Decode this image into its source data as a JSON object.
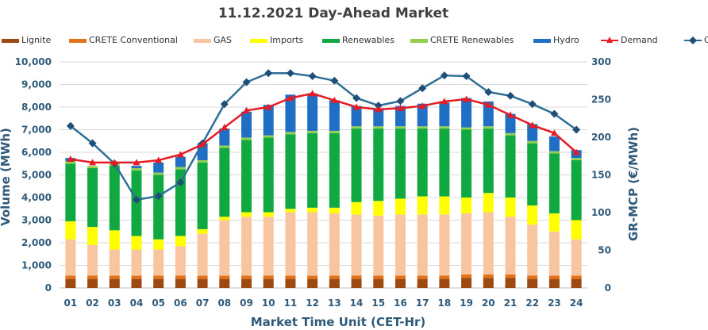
{
  "chart_data": {
    "type": "bar",
    "title": "11.12.2021  Day-Ahead Market",
    "xlabel": "Market Time Unit (CET-Hr)",
    "ylabel": "Volume (MWh)",
    "y2label": "GR-MCP (€/MWh)",
    "ylim": [
      0,
      10000
    ],
    "y2lim": [
      0,
      300
    ],
    "yticks": [
      "0",
      "1,000",
      "2,000",
      "3,000",
      "4,000",
      "5,000",
      "6,000",
      "7,000",
      "8,000",
      "9,000",
      "10,000"
    ],
    "y2ticks": [
      "0",
      "50",
      "100",
      "150",
      "200",
      "250",
      "300"
    ],
    "categories": [
      "01",
      "02",
      "03",
      "04",
      "05",
      "06",
      "07",
      "08",
      "09",
      "10",
      "11",
      "12",
      "13",
      "14",
      "15",
      "16",
      "17",
      "18",
      "19",
      "20",
      "21",
      "22",
      "23",
      "24"
    ],
    "legend_position": "top",
    "stacked_series": [
      {
        "name": "Lignite",
        "color": "#9c4a12",
        "values": [
          400,
          400,
          400,
          400,
          400,
          400,
          400,
          400,
          400,
          400,
          400,
          400,
          400,
          400,
          400,
          400,
          400,
          400,
          450,
          450,
          450,
          400,
          400,
          400
        ]
      },
      {
        "name": "CRETE Conventional",
        "color": "#e3731b",
        "values": [
          150,
          150,
          150,
          150,
          150,
          150,
          150,
          150,
          150,
          150,
          150,
          150,
          150,
          150,
          150,
          150,
          150,
          150,
          150,
          150,
          150,
          150,
          150,
          150
        ]
      },
      {
        "name": "GAS",
        "color": "#f7c6a1",
        "values": [
          1600,
          1350,
          1150,
          1150,
          1150,
          1300,
          1850,
          2450,
          2600,
          2600,
          2800,
          2800,
          2750,
          2700,
          2650,
          2700,
          2700,
          2700,
          2700,
          2750,
          2550,
          2250,
          1950,
          1600
        ]
      },
      {
        "name": "Imports",
        "color": "#ffff00",
        "values": [
          800,
          800,
          850,
          600,
          450,
          450,
          200,
          150,
          200,
          200,
          150,
          200,
          250,
          550,
          650,
          700,
          800,
          800,
          700,
          850,
          850,
          850,
          800,
          850
        ]
      },
      {
        "name": "Renewables",
        "color": "#10a840",
        "values": [
          2550,
          2600,
          2850,
          2900,
          2850,
          2950,
          2950,
          3050,
          3200,
          3300,
          3300,
          3300,
          3300,
          3250,
          3200,
          3100,
          3000,
          3000,
          3000,
          2850,
          2750,
          2750,
          2650,
          2650
        ]
      },
      {
        "name": "CRETE Renewables",
        "color": "#92d050",
        "values": [
          100,
          100,
          100,
          100,
          100,
          100,
          100,
          100,
          100,
          100,
          100,
          100,
          100,
          100,
          100,
          100,
          100,
          100,
          100,
          100,
          100,
          100,
          100,
          100
        ]
      },
      {
        "name": "Hydro",
        "color": "#1f6fc4",
        "values": [
          150,
          0,
          0,
          100,
          450,
          450,
          750,
          750,
          1150,
          1350,
          1650,
          1650,
          1350,
          900,
          800,
          900,
          1000,
          1050,
          1300,
          1100,
          850,
          750,
          650,
          350
        ]
      }
    ],
    "demand": {
      "name": "Demand",
      "color": "#e51c23",
      "values": [
        5700,
        5550,
        5550,
        5550,
        5650,
        5900,
        6350,
        7100,
        7850,
        8000,
        8400,
        8600,
        8300,
        8000,
        7900,
        7950,
        8050,
        8250,
        8350,
        8100,
        7650,
        7200,
        6850,
        6000
      ]
    },
    "mcp": {
      "name": "GR-MCP",
      "color": "#1f4e79",
      "values": [
        215,
        192,
        165,
        117,
        122,
        140,
        192,
        244,
        273,
        285,
        285,
        281,
        275,
        252,
        242,
        248,
        265,
        282,
        281,
        260,
        255,
        244,
        231,
        210
      ]
    }
  }
}
